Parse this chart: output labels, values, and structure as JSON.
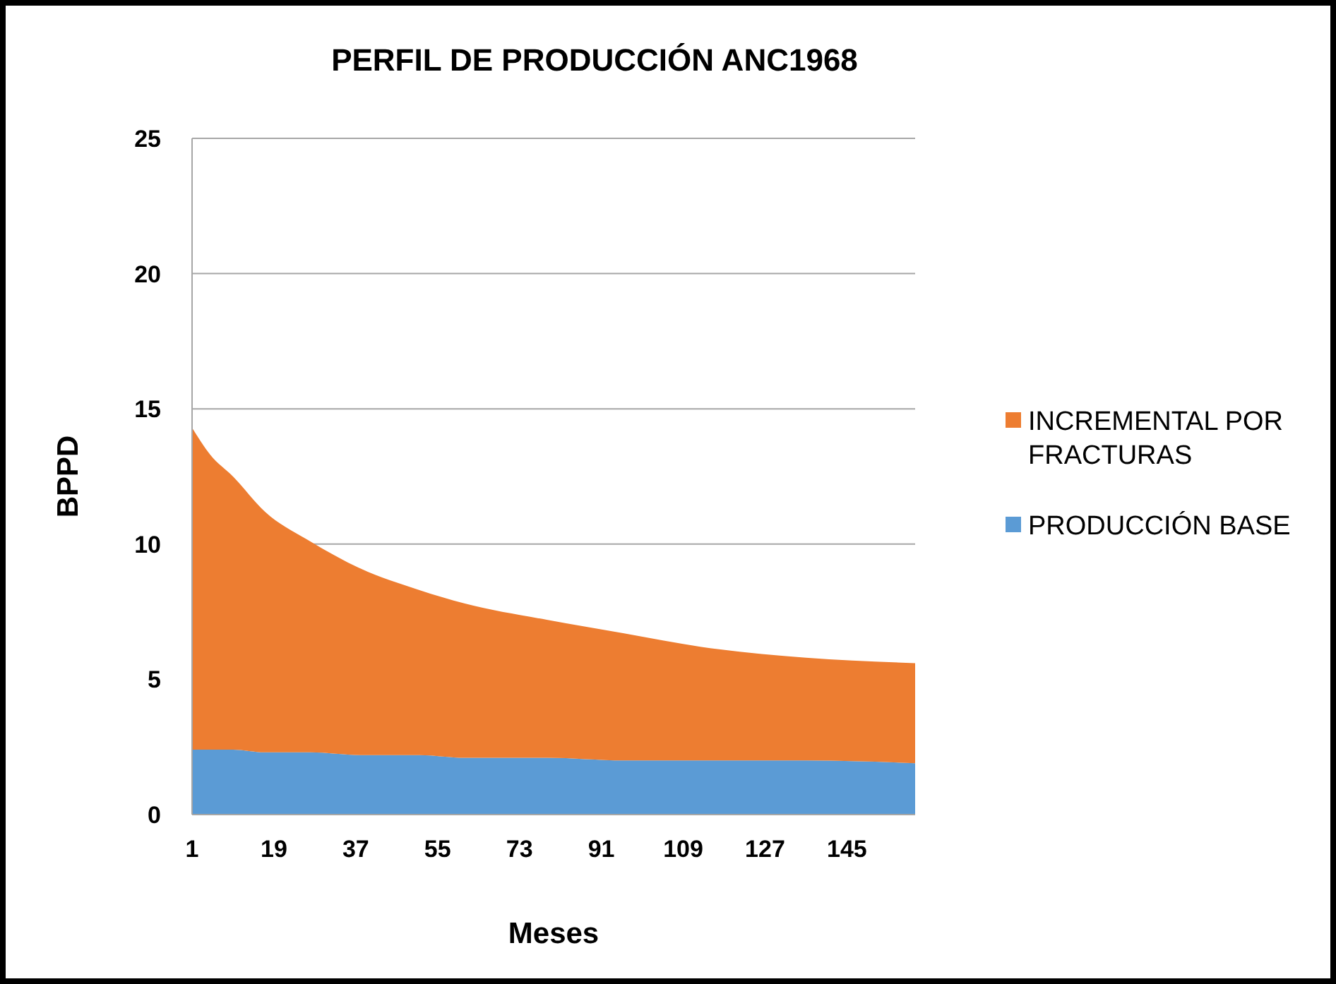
{
  "chart_data": {
    "type": "area",
    "title": "PERFIL DE PRODUCCIÓN ANC1968",
    "xlabel": "Meses",
    "ylabel": "BPPD",
    "stacked": true,
    "x": [
      1,
      5,
      10,
      17,
      27,
      38,
      51,
      61,
      79,
      96,
      113,
      136,
      160
    ],
    "xlim": [
      1,
      160
    ],
    "xticks": [
      1,
      19,
      37,
      55,
      73,
      91,
      109,
      127,
      145
    ],
    "ylim": [
      0,
      25
    ],
    "yticks": [
      0,
      5,
      10,
      15,
      20,
      25
    ],
    "grid": "y",
    "legend": "right",
    "series": [
      {
        "name": "PRODUCCIÓN BASE",
        "color": "#5b9bd5",
        "values": [
          2.4,
          2.4,
          2.4,
          2.3,
          2.3,
          2.2,
          2.2,
          2.1,
          2.1,
          2.0,
          2.0,
          2.0,
          1.9
        ]
      },
      {
        "name": "INCREMENTAL POR FRACTURAS",
        "color": "#ed7d31",
        "values": [
          11.9,
          10.9,
          10.1,
          8.9,
          7.8,
          6.9,
          6.1,
          5.7,
          5.1,
          4.7,
          4.2,
          3.8,
          3.7
        ]
      }
    ]
  }
}
